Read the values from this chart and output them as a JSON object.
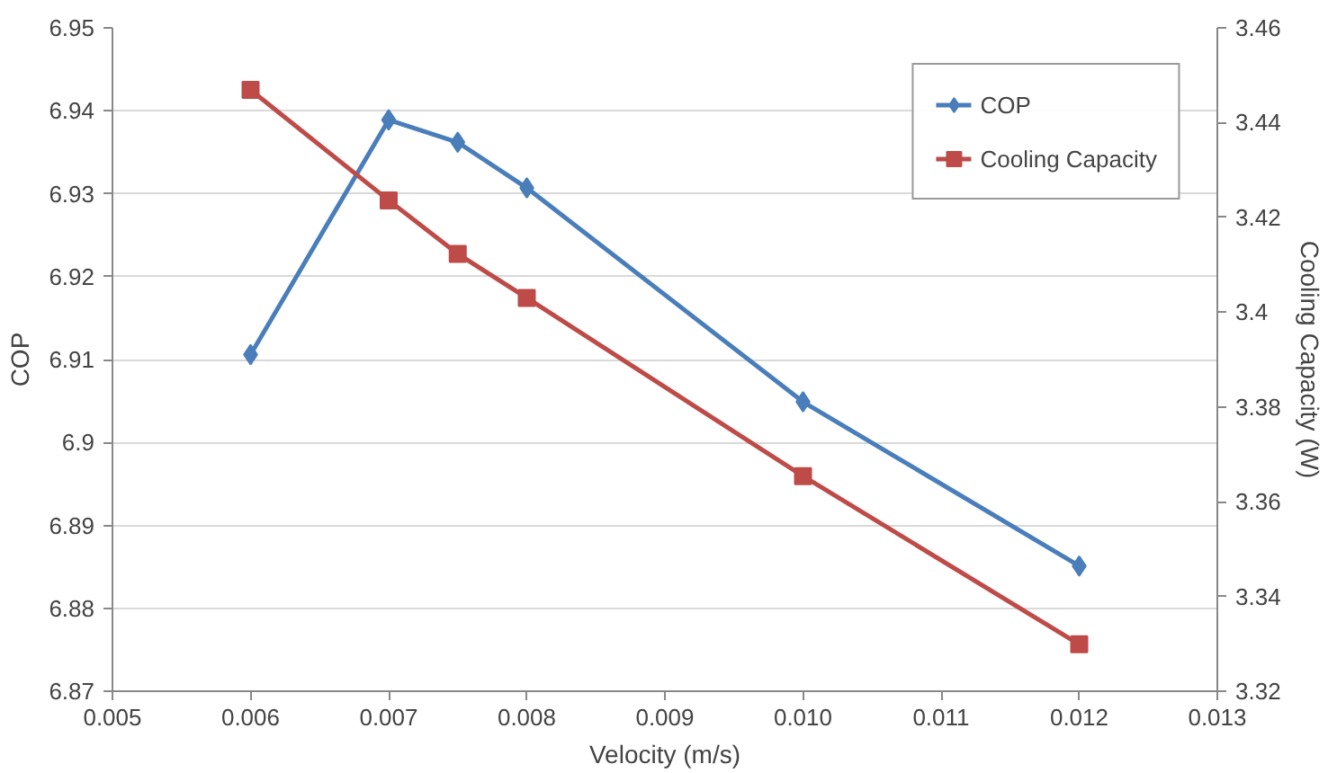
{
  "chart_data": {
    "type": "line",
    "xlabel": "Velocity (m/s)",
    "ylabel": "COP",
    "y2label": "Cooling Capacity (W)",
    "x": [
      0.006,
      0.007,
      0.0075,
      0.008,
      0.01,
      0.012
    ],
    "series": [
      {
        "name": "COP",
        "color": "#4a7ebb",
        "marker": "diamond",
        "values": [
          6.9106,
          6.9389,
          6.9362,
          6.9307,
          6.9049,
          6.8851
        ]
      },
      {
        "name": "Cooling Capacity",
        "color": "#be4b48",
        "marker": "square",
        "axis": "y2",
        "values": [
          3.4469,
          3.4236,
          3.4123,
          3.403,
          3.3654,
          3.3299
        ]
      }
    ],
    "xlim": [
      0.005,
      0.013
    ],
    "xticks": [
      {
        "value": 0.005,
        "label": "0.005"
      },
      {
        "value": 0.006,
        "label": "0.006"
      },
      {
        "value": 0.007,
        "label": "0.007"
      },
      {
        "value": 0.008,
        "label": "0.008"
      },
      {
        "value": 0.009,
        "label": "0.009"
      },
      {
        "value": 0.01,
        "label": "0.010"
      },
      {
        "value": 0.011,
        "label": "0.011"
      },
      {
        "value": 0.012,
        "label": "0.012"
      },
      {
        "value": 0.013,
        "label": "0.013"
      }
    ],
    "ylim": [
      6.87,
      6.95
    ],
    "yticks": [
      6.87,
      6.88,
      6.89,
      6.9,
      6.91,
      6.92,
      6.93,
      6.94,
      6.95
    ],
    "y2lim": [
      3.32,
      3.46
    ],
    "y2ticks": [
      3.32,
      3.34,
      3.36,
      3.38,
      3.4,
      3.42,
      3.44,
      3.46
    ],
    "grid": "y",
    "legend": "top right",
    "line_style": "solid"
  }
}
